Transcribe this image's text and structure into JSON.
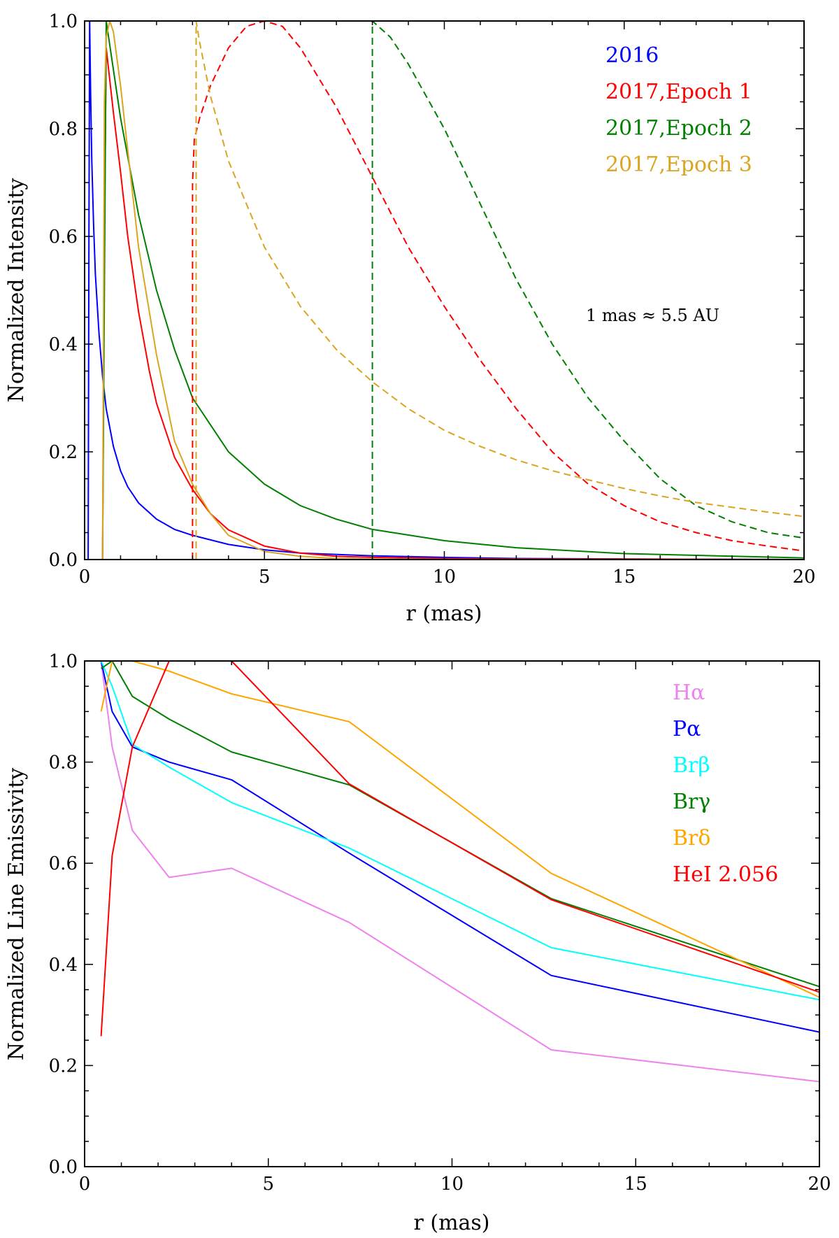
{
  "chart_data": [
    {
      "type": "line",
      "xlabel": "r (mas)",
      "ylabel": "Normalized Intensity",
      "xlim": [
        0,
        20
      ],
      "ylim": [
        0,
        1
      ],
      "xticks": [
        "0",
        "5",
        "10",
        "15",
        "20"
      ],
      "yticks": [
        "0.0",
        "0.2",
        "0.4",
        "0.6",
        "0.8",
        "1.0"
      ],
      "legend_position": "top-right",
      "annotation": "1 mas ≈ 5.5 AU",
      "series": [
        {
          "name": "2016",
          "color": "#0000ff",
          "style": "solid",
          "x": [
            0.1,
            0.12,
            0.14,
            0.17,
            0.2,
            0.25,
            0.3,
            0.4,
            0.5,
            0.6,
            0.8,
            1.0,
            1.2,
            1.5,
            2,
            2.5,
            3,
            4,
            5,
            6,
            8,
            10,
            12,
            15,
            20
          ],
          "y": [
            0,
            0.6,
            1.0,
            0.86,
            0.74,
            0.62,
            0.53,
            0.42,
            0.34,
            0.28,
            0.21,
            0.165,
            0.135,
            0.105,
            0.075,
            0.056,
            0.045,
            0.028,
            0.018,
            0.012,
            0.007,
            0.004,
            0.002,
            0.001,
            0
          ]
        },
        {
          "name": "2017,Epoch 1",
          "color": "#ff0000",
          "style": "solid",
          "x": [
            0.5,
            0.55,
            0.6,
            0.8,
            1.0,
            1.2,
            1.5,
            1.8,
            2,
            2.5,
            3,
            3.5,
            4,
            5,
            6,
            7,
            8,
            10,
            12,
            15,
            20
          ],
          "y": [
            0,
            0.6,
            0.95,
            0.83,
            0.72,
            0.6,
            0.46,
            0.35,
            0.29,
            0.19,
            0.13,
            0.085,
            0.055,
            0.025,
            0.012,
            0.006,
            0.004,
            0.002,
            0.001,
            0.001,
            0
          ]
        },
        {
          "name": "2017,Epoch 2",
          "color": "#008000",
          "style": "solid",
          "x": [
            0.5,
            0.55,
            0.6,
            1.0,
            1.5,
            2,
            2.5,
            3,
            4,
            5,
            6,
            7,
            8,
            10,
            12,
            15,
            20
          ],
          "y": [
            0,
            0.5,
            1.0,
            0.82,
            0.64,
            0.5,
            0.39,
            0.3,
            0.2,
            0.14,
            0.1,
            0.075,
            0.056,
            0.035,
            0.022,
            0.011,
            0.003
          ]
        },
        {
          "name": "2017,Epoch 3",
          "color": "#daa520",
          "style": "solid",
          "x": [
            0.5,
            0.55,
            0.6,
            0.7,
            0.8,
            1.0,
            1.2,
            1.5,
            2,
            2.5,
            3,
            3.5,
            4,
            5,
            6,
            7,
            8,
            10,
            20
          ],
          "y": [
            0,
            0.85,
            0.97,
            1.0,
            0.98,
            0.88,
            0.76,
            0.58,
            0.38,
            0.22,
            0.14,
            0.085,
            0.045,
            0.015,
            0.006,
            0.002,
            0.001,
            0,
            0
          ]
        },
        {
          "name": "2017,Epoch 1 (outer)",
          "color": "#ff0000",
          "style": "dashed",
          "x": [
            3.0,
            3.0,
            3.05,
            3.2,
            3.5,
            4,
            4.5,
            5,
            5.5,
            6,
            7,
            8,
            9,
            10,
            11,
            12,
            13,
            14,
            15,
            16,
            17,
            18,
            19,
            20
          ],
          "y": [
            0,
            0.7,
            0.78,
            0.82,
            0.88,
            0.95,
            0.99,
            1.0,
            0.99,
            0.95,
            0.84,
            0.71,
            0.58,
            0.47,
            0.37,
            0.28,
            0.2,
            0.14,
            0.1,
            0.07,
            0.05,
            0.035,
            0.025,
            0.016
          ]
        },
        {
          "name": "2017,Epoch 2 (outer)",
          "color": "#008000",
          "style": "dashed",
          "x": [
            8.0,
            8.0,
            8.5,
            9,
            10,
            11,
            12,
            13,
            14,
            15,
            16,
            17,
            18,
            19,
            20
          ],
          "y": [
            0,
            1.0,
            0.97,
            0.92,
            0.8,
            0.66,
            0.52,
            0.4,
            0.3,
            0.22,
            0.15,
            0.1,
            0.07,
            0.05,
            0.04
          ]
        },
        {
          "name": "2017,Epoch 3 (outer)",
          "color": "#daa520",
          "style": "dashed",
          "x": [
            3.1,
            3.1,
            3.2,
            3.5,
            4,
            5,
            6,
            7,
            8,
            9,
            10,
            11,
            12,
            13,
            14,
            15,
            16,
            17,
            18,
            19,
            20
          ],
          "y": [
            0,
            1.0,
            0.96,
            0.86,
            0.74,
            0.58,
            0.47,
            0.39,
            0.33,
            0.28,
            0.24,
            0.21,
            0.185,
            0.165,
            0.148,
            0.132,
            0.118,
            0.106,
            0.097,
            0.088,
            0.08
          ]
        }
      ],
      "legend": [
        {
          "label": "2016",
          "color": "#0000ff"
        },
        {
          "label": "2017,Epoch 1",
          "color": "#ff0000"
        },
        {
          "label": "2017,Epoch 2",
          "color": "#008000"
        },
        {
          "label": "2017,Epoch 3",
          "color": "#daa520"
        }
      ]
    },
    {
      "type": "line",
      "xlabel": "r (mas)",
      "ylabel": "Normalized Line Emissivity",
      "xlim": [
        0,
        20
      ],
      "ylim": [
        0,
        1
      ],
      "xticks": [
        "0",
        "5",
        "10",
        "15",
        "20"
      ],
      "yticks": [
        "0.0",
        "0.2",
        "0.4",
        "0.6",
        "0.8",
        "1.0"
      ],
      "legend_position": "top-right",
      "series": [
        {
          "name": "Hα",
          "color": "#ee82ee",
          "style": "solid",
          "x": [
            0.45,
            0.75,
            1.3,
            2.3,
            4.0,
            7.2,
            12.7,
            20.0
          ],
          "y": [
            1.0,
            0.83,
            0.665,
            0.572,
            0.59,
            0.483,
            0.231,
            0.168
          ]
        },
        {
          "name": "Pα",
          "color": "#0000ff",
          "style": "solid",
          "x": [
            0.45,
            0.75,
            1.3,
            2.3,
            4.0,
            7.2,
            12.7,
            20.0
          ],
          "y": [
            1.0,
            0.9,
            0.83,
            0.8,
            0.765,
            0.62,
            0.378,
            0.266
          ]
        },
        {
          "name": "Brβ",
          "color": "#00ffff",
          "style": "solid",
          "x": [
            0.45,
            0.75,
            1.3,
            2.3,
            4.0,
            7.2,
            12.7,
            20.0
          ],
          "y": [
            1.0,
            0.95,
            0.835,
            0.79,
            0.72,
            0.63,
            0.433,
            0.33
          ]
        },
        {
          "name": "Brγ",
          "color": "#008000",
          "style": "solid",
          "x": [
            0.45,
            0.75,
            1.3,
            2.3,
            4.0,
            7.2,
            12.7,
            20.0
          ],
          "y": [
            0.985,
            1.0,
            0.93,
            0.885,
            0.82,
            0.755,
            0.53,
            0.356
          ]
        },
        {
          "name": "Brδ",
          "color": "#ffa500",
          "style": "solid",
          "x": [
            0.45,
            0.75,
            1.3,
            2.3,
            4.0,
            7.2,
            12.7,
            20.0
          ],
          "y": [
            0.9,
            1.0,
            1.0,
            0.98,
            0.935,
            0.88,
            0.58,
            0.335
          ]
        },
        {
          "name": "HeI 2.056",
          "color": "#ff0000",
          "style": "solid",
          "x": [
            0.45,
            0.75,
            1.3,
            2.3,
            4.0,
            7.2,
            12.7,
            20.0
          ],
          "y": [
            0.258,
            0.615,
            0.83,
            1.0,
            1.0,
            0.757,
            0.528,
            0.345
          ]
        }
      ],
      "legend": [
        {
          "label": "Hα",
          "color": "#ee82ee"
        },
        {
          "label": "Pα",
          "color": "#0000ff"
        },
        {
          "label": "Brβ",
          "color": "#00ffff"
        },
        {
          "label": "Brγ",
          "color": "#008000"
        },
        {
          "label": "Brδ",
          "color": "#ffa500"
        },
        {
          "label": "HeI 2.056",
          "color": "#ff0000"
        }
      ]
    }
  ]
}
